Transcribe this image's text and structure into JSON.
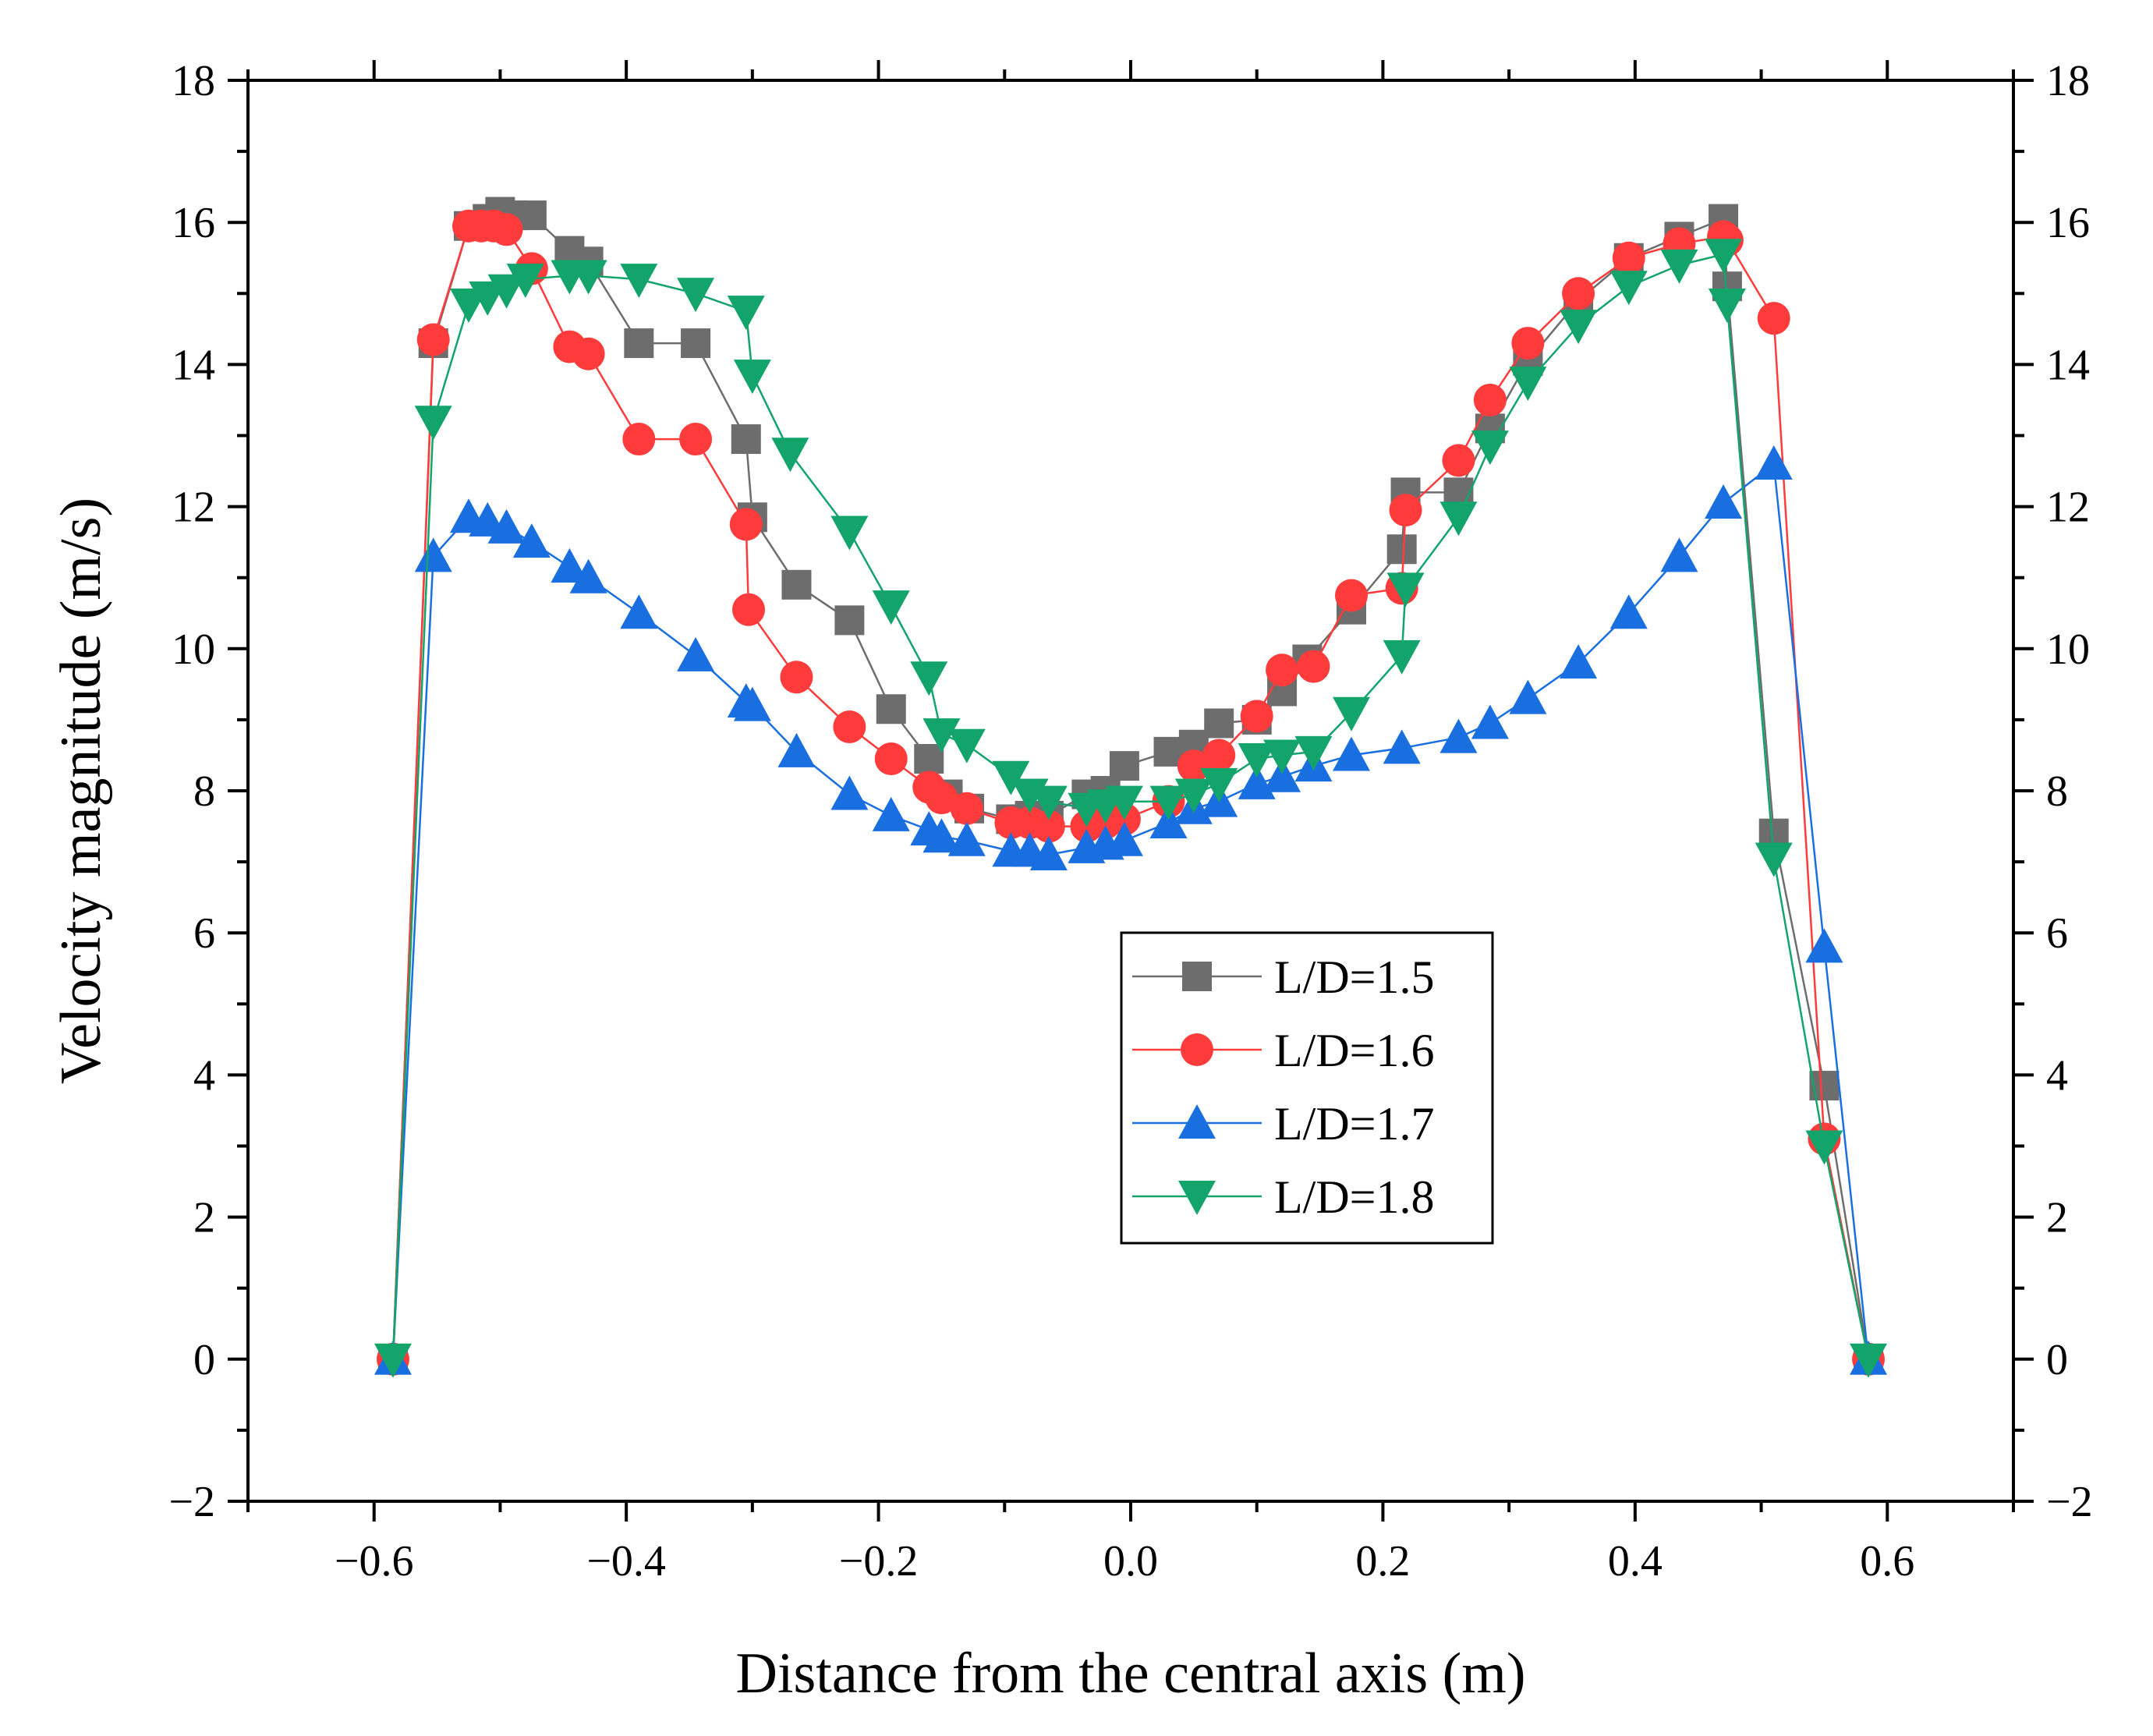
{
  "chart_data": {
    "type": "line",
    "title": "",
    "xlabel": "Distance from the central axis (m)",
    "ylabel": "Velocity magnitude (m/s)",
    "xlim": [
      -0.7,
      0.7
    ],
    "ylim": [
      -2,
      18
    ],
    "xticks": [
      -0.6,
      -0.4,
      -0.2,
      0.0,
      0.2,
      0.4,
      0.6
    ],
    "xtick_labels": [
      "−0.6",
      "−0.4",
      "−0.2",
      "0.0",
      "0.2",
      "0.4",
      "0.6"
    ],
    "yticks": [
      -2,
      0,
      2,
      4,
      6,
      8,
      10,
      12,
      14,
      16,
      18
    ],
    "ytick_labels": [
      "−2",
      "0",
      "2",
      "4",
      "6",
      "8",
      "10",
      "12",
      "14",
      "16",
      "18"
    ],
    "right_axis_mirrored": true,
    "grid": false,
    "legend_position": "center-right",
    "series": [
      {
        "name": "L/D=1.5",
        "marker": "square",
        "color": "#6d6d6d",
        "line_color": "#6d6d6d",
        "x": [
          -0.585,
          -0.553,
          -0.525,
          -0.51,
          -0.5,
          -0.49,
          -0.475,
          -0.445,
          -0.43,
          -0.39,
          -0.345,
          -0.305,
          -0.3,
          -0.265,
          -0.223,
          -0.19,
          -0.16,
          -0.145,
          -0.128,
          -0.095,
          -0.08,
          -0.065,
          -0.035,
          -0.02,
          -0.005,
          0.03,
          0.05,
          0.07,
          0.1,
          0.12,
          0.14,
          0.175,
          0.215,
          0.218,
          0.26,
          0.285,
          0.315,
          0.355,
          0.395,
          0.435,
          0.47,
          0.473,
          0.51,
          0.55,
          0.585
        ],
        "y": [
          0.0,
          14.3,
          15.95,
          16.05,
          16.15,
          16.1,
          16.1,
          15.6,
          15.45,
          14.3,
          14.3,
          12.95,
          11.85,
          10.9,
          10.4,
          9.15,
          8.45,
          7.95,
          7.75,
          7.6,
          7.65,
          7.65,
          7.95,
          8.0,
          8.35,
          8.55,
          8.65,
          8.95,
          9.0,
          9.4,
          9.85,
          10.55,
          11.4,
          12.2,
          12.2,
          13.1,
          14.05,
          14.9,
          15.5,
          15.8,
          16.05,
          15.1,
          7.4,
          3.85,
          0.0
        ]
      },
      {
        "name": "L/D=1.6",
        "marker": "circle",
        "color": "#ff3b3b",
        "line_color": "#ff3b3b",
        "x": [
          -0.585,
          -0.553,
          -0.525,
          -0.515,
          -0.505,
          -0.495,
          -0.475,
          -0.445,
          -0.43,
          -0.39,
          -0.345,
          -0.305,
          -0.303,
          -0.265,
          -0.223,
          -0.19,
          -0.16,
          -0.15,
          -0.13,
          -0.095,
          -0.08,
          -0.065,
          -0.035,
          -0.02,
          -0.005,
          0.03,
          0.05,
          0.07,
          0.1,
          0.12,
          0.145,
          0.175,
          0.215,
          0.218,
          0.26,
          0.285,
          0.315,
          0.355,
          0.395,
          0.435,
          0.47,
          0.473,
          0.51,
          0.55,
          0.585
        ],
        "y": [
          0.0,
          14.35,
          15.95,
          15.95,
          15.95,
          15.9,
          15.35,
          14.25,
          14.15,
          12.95,
          12.95,
          11.75,
          10.55,
          9.6,
          8.9,
          8.45,
          8.05,
          7.9,
          7.75,
          7.55,
          7.55,
          7.5,
          7.5,
          7.55,
          7.6,
          7.85,
          8.35,
          8.5,
          9.05,
          9.7,
          9.75,
          10.75,
          10.85,
          11.95,
          12.65,
          13.5,
          14.3,
          15.0,
          15.5,
          15.7,
          15.8,
          15.75,
          14.65,
          3.1,
          0.0
        ]
      },
      {
        "name": "L/D=1.7",
        "marker": "triangle-up",
        "color": "#1a6fe0",
        "line_color": "#1a6fe0",
        "x": [
          -0.585,
          -0.553,
          -0.525,
          -0.51,
          -0.495,
          -0.475,
          -0.445,
          -0.43,
          -0.39,
          -0.345,
          -0.305,
          -0.3,
          -0.265,
          -0.223,
          -0.19,
          -0.16,
          -0.15,
          -0.13,
          -0.095,
          -0.08,
          -0.065,
          -0.035,
          -0.02,
          -0.005,
          0.03,
          0.05,
          0.07,
          0.1,
          0.12,
          0.145,
          0.175,
          0.215,
          0.26,
          0.285,
          0.315,
          0.355,
          0.395,
          0.435,
          0.47,
          0.51,
          0.55,
          0.585
        ],
        "y": [
          0.0,
          11.3,
          11.85,
          11.8,
          11.7,
          11.5,
          11.15,
          11.0,
          10.5,
          9.9,
          9.25,
          9.2,
          8.55,
          7.95,
          7.65,
          7.45,
          7.35,
          7.3,
          7.15,
          7.15,
          7.1,
          7.2,
          7.25,
          7.3,
          7.55,
          7.75,
          7.85,
          8.1,
          8.2,
          8.35,
          8.5,
          8.6,
          8.75,
          8.95,
          9.3,
          9.8,
          10.5,
          11.3,
          12.05,
          12.6,
          5.8,
          0.0
        ]
      },
      {
        "name": "L/D=1.8",
        "marker": "triangle-down",
        "color": "#12a46b",
        "line_color": "#12a46b",
        "x": [
          -0.585,
          -0.553,
          -0.525,
          -0.51,
          -0.495,
          -0.48,
          -0.445,
          -0.43,
          -0.39,
          -0.345,
          -0.305,
          -0.3,
          -0.27,
          -0.223,
          -0.19,
          -0.16,
          -0.15,
          -0.13,
          -0.095,
          -0.08,
          -0.065,
          -0.035,
          -0.02,
          -0.005,
          0.03,
          0.05,
          0.07,
          0.1,
          0.12,
          0.145,
          0.175,
          0.215,
          0.218,
          0.26,
          0.285,
          0.315,
          0.355,
          0.395,
          0.435,
          0.47,
          0.473,
          0.51,
          0.55,
          0.585
        ],
        "y": [
          0.0,
          13.2,
          14.85,
          14.95,
          15.05,
          15.2,
          15.25,
          15.25,
          15.2,
          15.0,
          14.75,
          13.85,
          12.75,
          11.65,
          10.6,
          9.6,
          8.8,
          8.65,
          8.2,
          7.95,
          7.85,
          7.75,
          7.8,
          7.85,
          7.85,
          7.95,
          8.1,
          8.45,
          8.5,
          8.55,
          9.1,
          9.9,
          10.85,
          11.85,
          12.85,
          13.75,
          14.55,
          15.1,
          15.4,
          15.55,
          14.85,
          7.05,
          3.0,
          0.0
        ]
      }
    ]
  }
}
